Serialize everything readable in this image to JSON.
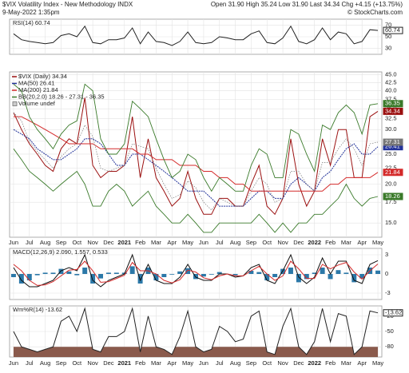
{
  "header": {
    "title": "$VIX Volatility Index - New Methodology INDX",
    "date": "9-May-2022 1:35pm",
    "quote": "Open 31.90 High 35.24 Low 31.90 Last 34.34 Chg +4.15 (+13.75%)",
    "credit": "© StockCharts.com"
  },
  "chart_data": [
    {
      "type": "line",
      "label": "RSI(14) 60.74",
      "ylim": [
        20,
        80
      ],
      "yticks": [
        30,
        50,
        70
      ],
      "grid": true,
      "series": [
        {
          "color": "#222222",
          "values": [
            55,
            45,
            42,
            40,
            38,
            40,
            52,
            55,
            50,
            68,
            40,
            38,
            45,
            45,
            48,
            65,
            38,
            58,
            42,
            40,
            35,
            42,
            58,
            40,
            38,
            40,
            50,
            48,
            45,
            45,
            55,
            60,
            40,
            38,
            48,
            68,
            42,
            38,
            45,
            65,
            45,
            58,
            55,
            38,
            42,
            62,
            60.74
          ]
        }
      ]
    },
    {
      "type": "line",
      "log": true,
      "grid": true,
      "extra_legend": "Volume undef",
      "categories": [
        "Jun",
        null,
        "Jul",
        null,
        "Aug",
        null,
        "Sep",
        null,
        "Oct",
        null,
        "Nov",
        null,
        "Dec",
        null,
        "2021",
        null,
        "Feb",
        null,
        "Mar",
        null,
        "Apr",
        null,
        "May",
        null,
        "Jun",
        null,
        "Jul",
        null,
        "Aug",
        null,
        "Sep",
        null,
        "Oct",
        null,
        "Nov",
        null,
        "Dec",
        null,
        "2022",
        null,
        "Feb",
        null,
        "Mar",
        null,
        "Apr",
        null,
        "May"
      ],
      "ylim": [
        13.5,
        46
      ],
      "yticks": [
        {
          "value": 15,
          "label": "15.0"
        },
        {
          "value": 17.5,
          "label": "17.5"
        },
        {
          "value": 20,
          "label": "20.0"
        },
        {
          "value": 22.5,
          "label": "22.5"
        },
        {
          "value": 25,
          "label": "25.0"
        },
        {
          "value": 27.5,
          "label": "27.5"
        },
        {
          "value": 30,
          "label": "30.0"
        },
        {
          "value": 32.5,
          "label": "32.5"
        },
        {
          "value": 35,
          "label": "35.0"
        },
        {
          "value": 37.5,
          "label": "37.5"
        },
        {
          "value": 40,
          "label": "40.0"
        },
        {
          "value": 42.5,
          "label": "42.5"
        },
        {
          "value": 45,
          "label": "45.0"
        }
      ],
      "series": [
        {
          "name": "$VIX (Daily) 34.34",
          "color": "#9b1010",
          "values": [
            34,
            30,
            27,
            25,
            23,
            22,
            26,
            28,
            27,
            38,
            23,
            21,
            22,
            22,
            23,
            33,
            21,
            28,
            21,
            19,
            17,
            18,
            22,
            18,
            16,
            16,
            18,
            18,
            17,
            17,
            20,
            23,
            17,
            16,
            18,
            28,
            20,
            17,
            19,
            28,
            23,
            30,
            30,
            21,
            21,
            33,
            34.34
          ]
        },
        {
          "name": "MA(50) 26.41",
          "color": "#23339a",
          "dash": "2,1",
          "values": [
            30,
            29,
            28,
            26,
            25,
            24,
            24,
            25,
            26,
            28,
            28,
            27,
            25,
            23,
            23,
            25,
            25,
            24,
            23,
            22,
            21,
            20,
            19,
            19,
            19,
            18,
            17,
            17,
            17,
            17,
            18,
            19,
            19,
            18,
            18,
            20,
            21,
            20,
            19,
            21,
            22,
            24,
            26,
            27,
            25,
            25,
            26.41
          ]
        },
        {
          "name": "MA(200) 21.84",
          "color": "#d42a2a",
          "values": [
            33,
            33,
            32,
            31,
            30,
            29,
            28,
            27,
            27,
            27,
            27,
            26,
            26,
            26,
            26,
            26,
            25,
            25,
            24,
            24,
            24,
            23,
            23,
            23,
            22,
            22,
            21,
            21,
            20,
            20,
            19,
            19,
            19,
            19,
            19,
            19,
            19,
            19,
            19,
            19,
            20,
            20,
            21,
            21,
            21,
            21,
            21.84
          ]
        },
        {
          "name": "BB(20,2.0) 18.26 - 27.31 - 36.35",
          "color": "#3a7a2a",
          "upper": [
            42,
            40,
            33,
            30,
            28,
            26,
            29,
            31,
            32,
            42,
            40,
            28,
            25,
            25,
            27,
            37,
            35,
            33,
            28,
            24,
            21,
            22,
            25,
            24,
            21,
            19,
            21,
            20,
            19,
            19,
            23,
            26,
            25,
            21,
            21,
            30,
            29,
            25,
            22,
            31,
            30,
            34,
            36,
            34,
            29,
            36,
            36.35
          ],
          "middle": [
            34,
            32,
            27.5,
            25.5,
            24,
            22.5,
            24.5,
            26,
            27,
            31,
            28.5,
            22.5,
            22,
            22.5,
            23,
            27,
            26.5,
            26,
            22.5,
            20,
            18,
            18.5,
            20.5,
            19.5,
            17.5,
            16.5,
            18,
            17.5,
            17,
            17,
            19,
            21,
            20,
            17.5,
            18,
            22,
            22,
            20,
            19,
            23.5,
            23.5,
            26,
            28,
            26,
            23,
            27,
            27.31
          ],
          "lower": [
            26,
            24,
            22,
            21,
            20,
            19,
            20,
            21,
            22,
            20,
            17,
            17,
            19,
            20,
            19,
            17,
            18,
            19,
            17,
            16,
            15,
            15,
            16,
            15,
            14,
            14,
            15,
            15,
            15,
            15,
            15,
            16,
            15,
            14,
            15,
            14,
            15,
            15,
            16,
            16,
            17,
            18,
            20,
            18,
            17,
            18,
            18.26
          ]
        }
      ]
    },
    {
      "type": "line",
      "label": "MACD(12,26,9) 2.090, 1.557, 0.533",
      "ylim": [
        -4,
        4
      ],
      "yticks": [
        -3,
        0,
        3
      ],
      "grid": true,
      "series": [
        {
          "type": "bar",
          "color": "#2b78a8",
          "values": [
            -0.5,
            -1.5,
            -1,
            -0.2,
            0.2,
            0.2,
            0.8,
            0.4,
            -0.2,
            1,
            -1.5,
            -0.7,
            0.2,
            0.2,
            0.2,
            1.2,
            -1.5,
            1,
            -1,
            -0.5,
            -0.1,
            0.4,
            0.9,
            -0.8,
            -0.4,
            -0.1,
            0.3,
            0,
            -0.2,
            0,
            0.5,
            0.3,
            -1,
            -0.5,
            0.8,
            1,
            -1.3,
            -0.8,
            0.2,
            1,
            -0.8,
            0.6,
            0.2,
            -1.3,
            -0.7,
            1,
            0.533
          ]
        },
        {
          "color": "#111111",
          "values": [
            1,
            -1,
            -2,
            -2,
            -1.5,
            -1,
            0.5,
            1,
            0.5,
            3,
            -1,
            -2,
            -1,
            -0.5,
            0,
            3,
            -1,
            1.5,
            -1,
            -1.5,
            -1.5,
            -0.5,
            1.5,
            -0.5,
            -1,
            -1,
            0,
            0,
            -0.5,
            -0.3,
            1,
            1.5,
            -1,
            -1.5,
            0.5,
            3,
            -0.5,
            -1.5,
            -0.5,
            2.5,
            0,
            2,
            2,
            -1,
            -1.5,
            1.5,
            2.09
          ]
        },
        {
          "color": "#d42a2a",
          "values": [
            1.5,
            0.5,
            -1,
            -1.8,
            -1.7,
            -1.2,
            -0.3,
            0.6,
            0.7,
            2,
            0.5,
            -1.3,
            -1.2,
            -0.7,
            -0.2,
            1.8,
            0.5,
            0.5,
            0,
            -1,
            -1.4,
            -0.9,
            0.6,
            0.3,
            -0.6,
            -0.9,
            -0.3,
            0,
            -0.3,
            -0.3,
            0.5,
            1.2,
            0,
            -1,
            -0.3,
            2,
            0.8,
            -0.7,
            -0.7,
            1.5,
            0.8,
            1.4,
            1.8,
            0.3,
            -0.8,
            0.5,
            1.557
          ]
        }
      ]
    },
    {
      "type": "line",
      "label": "Wm%R(14) -13.62",
      "ylim": [
        -100,
        0
      ],
      "yticks": [
        -80,
        -50,
        -20
      ],
      "grid": true,
      "oversold": -80,
      "oversold_color": "#8a5a4c",
      "series": [
        {
          "color": "#222222",
          "values": [
            -50,
            -80,
            -85,
            -90,
            -85,
            -80,
            -30,
            -20,
            -50,
            -5,
            -85,
            -90,
            -60,
            -60,
            -50,
            -5,
            -90,
            -20,
            -80,
            -85,
            -95,
            -60,
            -10,
            -80,
            -90,
            -85,
            -40,
            -50,
            -70,
            -65,
            -20,
            -10,
            -90,
            -95,
            -40,
            -5,
            -80,
            -95,
            -70,
            -5,
            -70,
            -15,
            -20,
            -95,
            -80,
            -10,
            -13.62
          ]
        }
      ]
    }
  ]
}
